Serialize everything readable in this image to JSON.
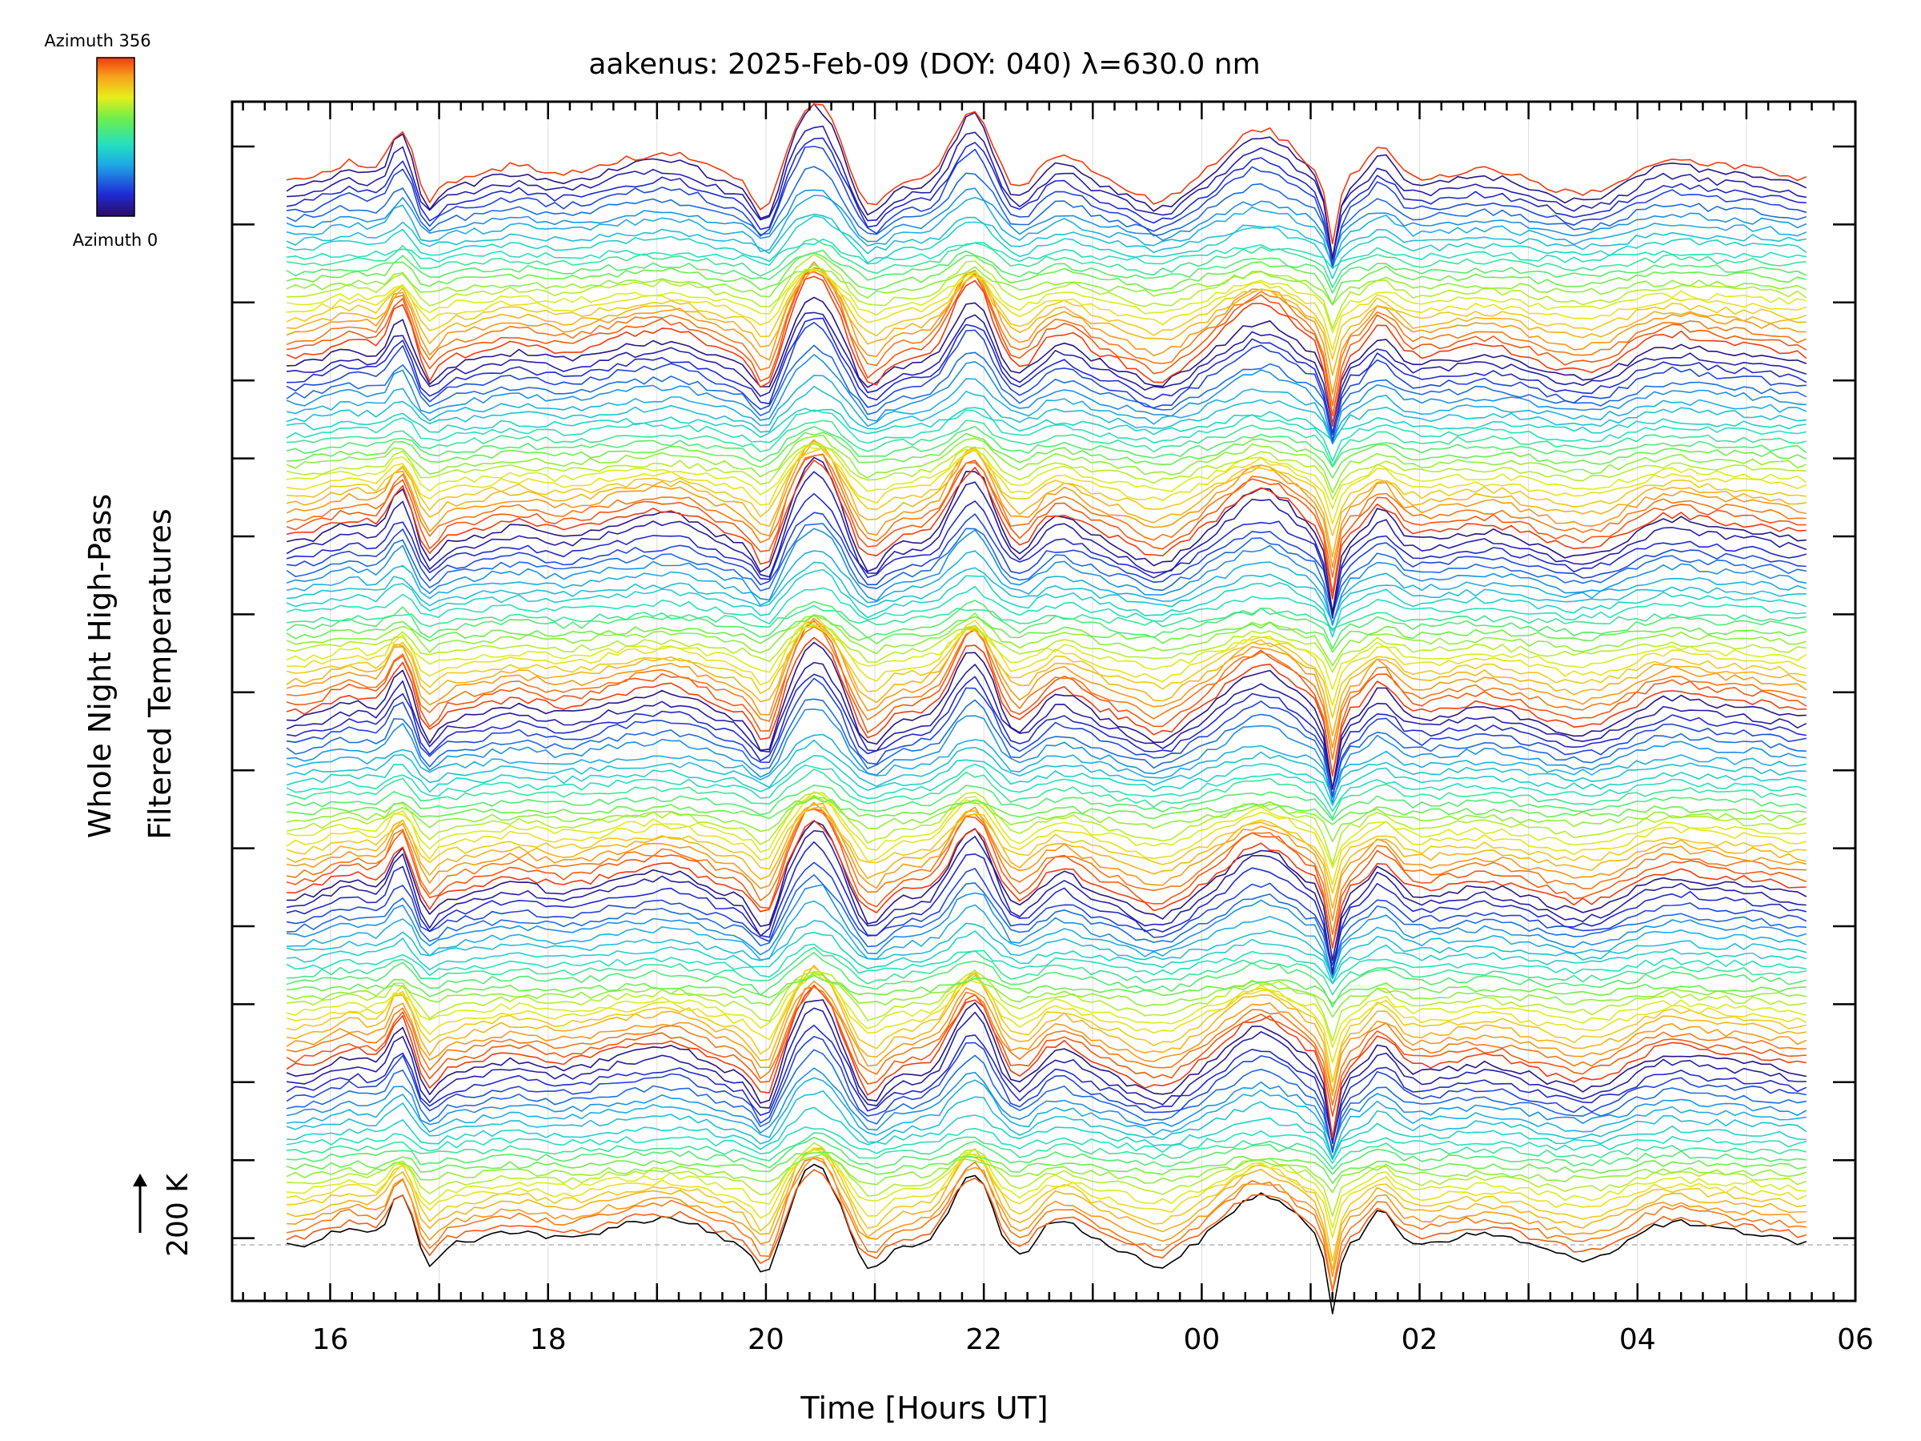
{
  "chart_data": {
    "type": "line",
    "title": "aakenus: 2025-Feb-09 (DOY: 040) λ=630.0 nm",
    "xlabel": "Time [Hours UT]",
    "ylabel_line1": "Whole Night High-Pass",
    "ylabel_line2": "Filtered Temperatures",
    "scale_bar_label": "200 K",
    "scale_bar_kelvin": 200,
    "x_range_hours": [
      15.1,
      30.0
    ],
    "x_ticks": [
      {
        "h": 16,
        "label": "16"
      },
      {
        "h": 18,
        "label": "18"
      },
      {
        "h": 20,
        "label": "20"
      },
      {
        "h": 22,
        "label": "22"
      },
      {
        "h": 24,
        "label": "00"
      },
      {
        "h": 26,
        "label": "02"
      },
      {
        "h": 28,
        "label": "04"
      },
      {
        "h": 30,
        "label": "06"
      }
    ],
    "data_range_hours": [
      15.6,
      29.55
    ],
    "colorbar": {
      "top_label": "Azimuth 356",
      "bottom_label": "Azimuth 0",
      "colors": [
        "#2b0a64",
        "#1f2cd6",
        "#1ea6e6",
        "#23e0c0",
        "#6fef4a",
        "#e8ee1a",
        "#f7a21c",
        "#f23a10"
      ]
    },
    "series_count": 139,
    "azimuth_range": [
      0,
      356
    ],
    "stack_groups": 6,
    "event_times_hours": [
      16.6,
      20.4,
      21.9,
      24.6,
      25.2,
      25.7
    ],
    "grid": "vertical-hourly"
  }
}
